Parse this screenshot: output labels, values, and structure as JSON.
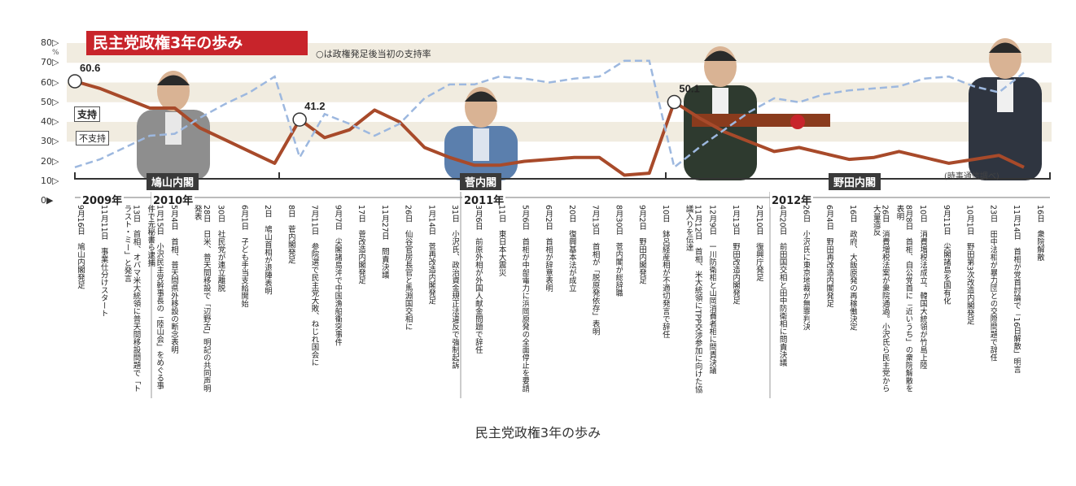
{
  "title": "民主党政権3年の歩み",
  "note": "○は政権発足後当初の支持率",
  "source": "(時事通信調べ)",
  "caption": "民主党政権3年の歩み",
  "percent_label": "%",
  "legend": {
    "support": "支持",
    "nonsupport": "不支持"
  },
  "colors": {
    "support": "#a84a2a",
    "nonsupport": "#9db8df",
    "banner": "#c8242b"
  },
  "cabinets": [
    "鳩山内閣",
    "菅内閣",
    "野田内閣"
  ],
  "years": [
    "2009年",
    "2010年",
    "2011年",
    "2012年"
  ],
  "events": [
    {
      "date": "9月16日",
      "text": "鳩山内閣発足"
    },
    {
      "date": "11月11日",
      "text": "事業仕分けスタート"
    },
    {
      "date": "13日",
      "text": "首相、オバマ米大統領に普天間移設問題で「トラスト・ミー」と発言"
    },
    {
      "date": "1月15日",
      "text": "小沢民主党幹事長の「陸山会」をめぐる事件で元秘書ら逮捕"
    },
    {
      "date": "5月4日",
      "text": "首相、普天間県外移設の断念表明"
    },
    {
      "date": "28日",
      "text": "日米、普天間移設で「辺野古」明記の共同声明発表"
    },
    {
      "date": "30日",
      "text": "社民党が連立離脱"
    },
    {
      "date": "6月1日",
      "text": "子ども手当支給開始"
    },
    {
      "date": "2日",
      "text": "鳩山首相が退陣表明"
    },
    {
      "date": "8日",
      "text": "菅内閣発足"
    },
    {
      "date": "7月11日",
      "text": "参院選で民主党大敗、ねじれ国会に"
    },
    {
      "date": "9月7日",
      "text": "尖閣諸島沖で中国漁船衝突事件"
    },
    {
      "date": "17日",
      "text": "菅改造内閣発足"
    },
    {
      "date": "11月27日",
      "text": "問責決議"
    },
    {
      "date": "26日",
      "text": "仙谷官房長官と馬淵国交相に"
    },
    {
      "date": "1月14日",
      "text": "菅再改造内閣発足"
    },
    {
      "date": "31日",
      "text": "小沢氏、政治資金規正法違反で強制起訴"
    },
    {
      "date": "3月6日",
      "text": "前原外相が外国人献金問題で辞任"
    },
    {
      "date": "11日",
      "text": "東日本大震災"
    },
    {
      "date": "5月6日",
      "text": "首相が中部電力に浜岡原発の全面停止を要請"
    },
    {
      "date": "6月2日",
      "text": "首相が辞意表明"
    },
    {
      "date": "20日",
      "text": "復興基本法が成立"
    },
    {
      "date": "7月13日",
      "text": "首相が「脱原発依存」表明"
    },
    {
      "date": "8月30日",
      "text": "菅内閣が総辞職"
    },
    {
      "date": "9月2日",
      "text": "野田内閣発足"
    },
    {
      "date": "10日",
      "text": "鉢呂経産相が不適切発言で辞任"
    },
    {
      "date": "11月12日",
      "text": "首相、米大統領にTPP交渉参加に向けた協議入りを伝達"
    },
    {
      "date": "12月9日",
      "text": "一川防衛相と山岡消費者相に問責決議"
    },
    {
      "date": "1月13日",
      "text": "野田改造内閣発足"
    },
    {
      "date": "2月10日",
      "text": "復興庁発足"
    },
    {
      "date": "4月20日",
      "text": "前田国交相と田中防衛相に問責決議"
    },
    {
      "date": "26日",
      "text": "小沢氏に東京地裁が無罪判決"
    },
    {
      "date": "6月4日",
      "text": "野田再改造内閣発足"
    },
    {
      "date": "16日",
      "text": "政府、大飯原発の再稼働決定"
    },
    {
      "date": "26日",
      "text": "消費増税法案が衆院通過。小沢氏ら民主党から大量造反"
    },
    {
      "date": "8月8日",
      "text": "首相、自公党首に「近いうち」の衆院解散を表明"
    },
    {
      "date": "10日",
      "text": "消費増税法成立。韓国大統領が竹島上陸"
    },
    {
      "date": "9月11日",
      "text": "尖閣諸島を国有化"
    },
    {
      "date": "10月1日",
      "text": "野田第3次改造内閣発足"
    },
    {
      "date": "23日",
      "text": "田中法相が暴力団との交際問題で辞任"
    },
    {
      "date": "11月14日",
      "text": "首相が党首討論で「16日解散」明言"
    },
    {
      "date": "16日",
      "text": "衆院解散"
    }
  ],
  "chart_data": {
    "type": "line",
    "y_ticks": [
      "80",
      "70",
      "60",
      "50",
      "40",
      "30",
      "20",
      "10",
      "0"
    ],
    "ylim": [
      0,
      80
    ],
    "x_range_months": [
      "2009-09",
      "2012-11"
    ],
    "annotations": [
      {
        "label": "60.6",
        "x": "2009-09",
        "y": 60.6
      },
      {
        "label": "41.2",
        "x": "2010-06",
        "y": 41.2
      },
      {
        "label": "50.1",
        "x": "2011-09",
        "y": 50.1
      }
    ],
    "series": [
      {
        "name": "支持",
        "values": [
          [
            "2009-09",
            60.6
          ],
          [
            "2009-10",
            57
          ],
          [
            "2009-11",
            52
          ],
          [
            "2009-12",
            47
          ],
          [
            "2010-01",
            47
          ],
          [
            "2010-02",
            37
          ],
          [
            "2010-03",
            31
          ],
          [
            "2010-04",
            25
          ],
          [
            "2010-05",
            19
          ],
          [
            "2010-06",
            41.2
          ],
          [
            "2010-07",
            32
          ],
          [
            "2010-08",
            36
          ],
          [
            "2010-09",
            46
          ],
          [
            "2010-10",
            40
          ],
          [
            "2010-11",
            27
          ],
          [
            "2010-12",
            22
          ],
          [
            "2011-01",
            18
          ],
          [
            "2011-02",
            18
          ],
          [
            "2011-03",
            20
          ],
          [
            "2011-04",
            21
          ],
          [
            "2011-05",
            22
          ],
          [
            "2011-06",
            22
          ],
          [
            "2011-07",
            13
          ],
          [
            "2011-08",
            14
          ],
          [
            "2011-09",
            50.1
          ],
          [
            "2011-10",
            42
          ],
          [
            "2011-11",
            35
          ],
          [
            "2011-12",
            30
          ],
          [
            "2012-01",
            25
          ],
          [
            "2012-02",
            27
          ],
          [
            "2012-03",
            24
          ],
          [
            "2012-04",
            21
          ],
          [
            "2012-05",
            22
          ],
          [
            "2012-06",
            25
          ],
          [
            "2012-07",
            22
          ],
          [
            "2012-08",
            19
          ],
          [
            "2012-09",
            21
          ],
          [
            "2012-10",
            23
          ],
          [
            "2012-11",
            17
          ]
        ]
      },
      {
        "name": "不支持",
        "values": [
          [
            "2009-09",
            17
          ],
          [
            "2009-10",
            21
          ],
          [
            "2009-11",
            27
          ],
          [
            "2009-12",
            33
          ],
          [
            "2010-01",
            34
          ],
          [
            "2010-02",
            42
          ],
          [
            "2010-03",
            49
          ],
          [
            "2010-04",
            55
          ],
          [
            "2010-05",
            63
          ],
          [
            "2010-06",
            22
          ],
          [
            "2010-07",
            44
          ],
          [
            "2010-08",
            39
          ],
          [
            "2010-09",
            33
          ],
          [
            "2010-10",
            39
          ],
          [
            "2010-11",
            52
          ],
          [
            "2010-12",
            59
          ],
          [
            "2011-01",
            59
          ],
          [
            "2011-02",
            63
          ],
          [
            "2011-03",
            62
          ],
          [
            "2011-04",
            60
          ],
          [
            "2011-05",
            62
          ],
          [
            "2011-06",
            63
          ],
          [
            "2011-07",
            71
          ],
          [
            "2011-08",
            71
          ],
          [
            "2011-09",
            17
          ],
          [
            "2011-10",
            27
          ],
          [
            "2011-11",
            36
          ],
          [
            "2011-12",
            45
          ],
          [
            "2012-01",
            52
          ],
          [
            "2012-02",
            50
          ],
          [
            "2012-03",
            54
          ],
          [
            "2012-04",
            56
          ],
          [
            "2012-05",
            57
          ],
          [
            "2012-06",
            58
          ],
          [
            "2012-07",
            62
          ],
          [
            "2012-08",
            63
          ],
          [
            "2012-09",
            58
          ],
          [
            "2012-10",
            55
          ],
          [
            "2012-11",
            65
          ]
        ]
      }
    ]
  }
}
